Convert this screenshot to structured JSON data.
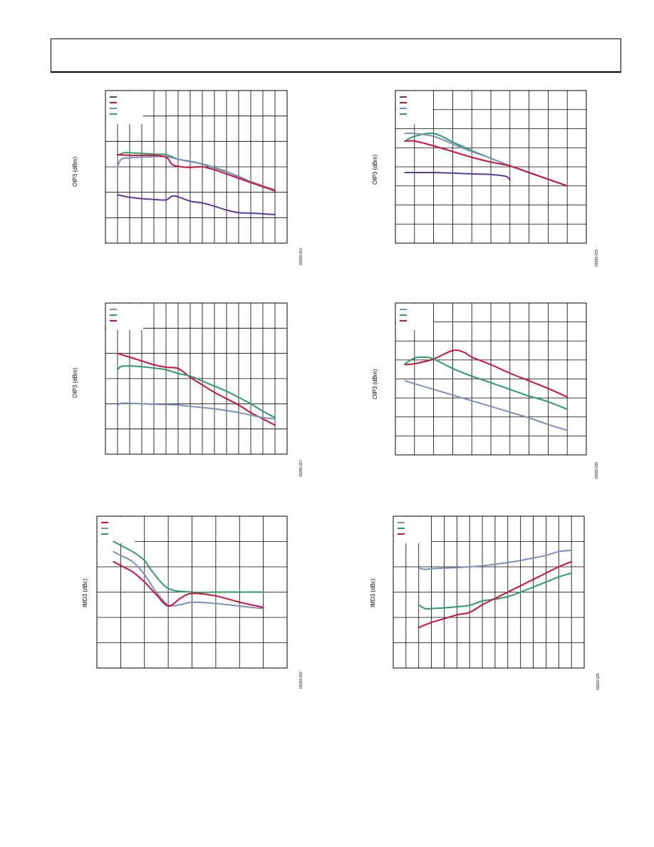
{
  "colors": {
    "purple": "#5b3a9a",
    "red": "#d0103a",
    "blue": "#7a8fc0",
    "green": "#2e9c6a",
    "grid": "#000000"
  },
  "charts": [
    {
      "id": "chart1",
      "ylabel": "OIP3 (dBm)",
      "fignum": "03283-012",
      "legend_colors": [
        "purple",
        "red",
        "blue",
        "green"
      ],
      "chart_data": {
        "type": "line",
        "xgrid": 15,
        "ygrid": 6,
        "xlim": [
          0,
          15
        ],
        "ylim": [
          0,
          6
        ],
        "series": [
          {
            "color": "green",
            "x": [
              1,
              1.5,
              2,
              3,
              4,
              5,
              6,
              7,
              8,
              9,
              10,
              11,
              12,
              13,
              14
            ],
            "y": [
              3.45,
              3.55,
              3.55,
              3.53,
              3.5,
              3.48,
              3.3,
              3.22,
              3.1,
              2.95,
              2.8,
              2.62,
              2.42,
              2.25,
              2.1
            ]
          },
          {
            "color": "blue",
            "x": [
              1,
              1.3,
              2,
              3,
              4,
              5,
              6,
              7,
              8,
              9,
              10,
              11,
              12,
              13,
              14
            ],
            "y": [
              3.0,
              3.3,
              3.35,
              3.38,
              3.4,
              3.4,
              3.3,
              3.2,
              3.12,
              2.97,
              2.82,
              2.6,
              2.42,
              2.25,
              2.08
            ]
          },
          {
            "color": "red",
            "x": [
              1,
              2,
              3,
              4,
              5,
              5.5,
              6,
              7,
              8,
              9,
              10,
              11,
              12,
              13,
              14
            ],
            "y": [
              3.48,
              3.45,
              3.45,
              3.45,
              3.38,
              3.1,
              3.02,
              2.98,
              3.0,
              2.88,
              2.72,
              2.55,
              2.38,
              2.22,
              2.05
            ]
          },
          {
            "color": "purple",
            "x": [
              1,
              2,
              3,
              4,
              5,
              5.5,
              6,
              7,
              8,
              9,
              10,
              11,
              12,
              13,
              14
            ],
            "y": [
              1.9,
              1.8,
              1.75,
              1.72,
              1.7,
              1.85,
              1.82,
              1.65,
              1.58,
              1.45,
              1.3,
              1.2,
              1.18,
              1.15,
              1.12
            ]
          }
        ]
      }
    },
    {
      "id": "chart2",
      "ylabel": "OIP3 (dBm)",
      "fignum": "03283-015",
      "legend_colors": [
        "purple",
        "red",
        "blue",
        "green"
      ],
      "chart_data": {
        "type": "line",
        "xgrid": 10,
        "ygrid": 8,
        "xlim": [
          0,
          10
        ],
        "ylim": [
          0,
          8
        ],
        "series": [
          {
            "color": "green",
            "x": [
              0.5,
              1,
              2,
              3,
              4,
              5,
              6,
              7,
              8,
              9
            ],
            "y": [
              5.35,
              5.6,
              5.75,
              5.3,
              4.85,
              4.45,
              4.05,
              3.7,
              3.35,
              3.0
            ]
          },
          {
            "color": "blue",
            "x": [
              0.5,
              1,
              2,
              3,
              4,
              5,
              6,
              7,
              8,
              9
            ],
            "y": [
              5.75,
              5.75,
              5.6,
              5.2,
              4.8,
              4.45,
              4.05,
              3.7,
              3.35,
              3.0
            ]
          },
          {
            "color": "red",
            "x": [
              0.5,
              1,
              2,
              3,
              4,
              5,
              6,
              7,
              8,
              9
            ],
            "y": [
              5.35,
              5.35,
              5.1,
              4.8,
              4.5,
              4.25,
              4.05,
              3.7,
              3.35,
              3.0
            ]
          },
          {
            "color": "purple",
            "x": [
              0.5,
              1,
              2,
              3,
              4,
              5,
              5.8,
              6
            ],
            "y": [
              3.7,
              3.7,
              3.7,
              3.67,
              3.63,
              3.6,
              3.5,
              3.3
            ]
          }
        ]
      }
    },
    {
      "id": "chart3",
      "ylabel": "OIP3 (dBm)",
      "fignum": "03283-017",
      "legend_colors": [
        "blue",
        "green",
        "red"
      ],
      "chart_data": {
        "type": "line",
        "xgrid": 15,
        "ygrid": 6,
        "xlim": [
          0,
          15
        ],
        "ylim": [
          0,
          6
        ],
        "series": [
          {
            "color": "red",
            "x": [
              1,
              2,
              3,
              4,
              5,
              6,
              7,
              8,
              9,
              10,
              11,
              12,
              13,
              14
            ],
            "y": [
              4.0,
              3.85,
              3.7,
              3.55,
              3.45,
              3.4,
              3.05,
              2.75,
              2.45,
              2.2,
              1.95,
              1.65,
              1.4,
              1.15
            ]
          },
          {
            "color": "green",
            "x": [
              1,
              1.3,
              2,
              3,
              4,
              5,
              6,
              7,
              8,
              9,
              10,
              11,
              12,
              13,
              14
            ],
            "y": [
              3.35,
              3.48,
              3.5,
              3.47,
              3.42,
              3.35,
              3.2,
              3.1,
              2.9,
              2.7,
              2.5,
              2.25,
              2.0,
              1.7,
              1.45
            ]
          },
          {
            "color": "blue",
            "x": [
              1,
              1.3,
              2,
              3,
              4,
              5,
              6,
              7,
              8,
              9,
              10,
              11,
              12,
              13,
              14
            ],
            "y": [
              1.95,
              2.02,
              2.02,
              2.0,
              1.98,
              1.97,
              1.95,
              1.9,
              1.85,
              1.8,
              1.73,
              1.65,
              1.55,
              1.45,
              1.4
            ]
          }
        ]
      }
    },
    {
      "id": "chart4",
      "ylabel": "OIP3 (dBm)",
      "fignum": "03283-020",
      "legend_colors": [
        "blue",
        "green",
        "red"
      ],
      "chart_data": {
        "type": "line",
        "xgrid": 10,
        "ygrid": 8,
        "xlim": [
          0,
          10
        ],
        "ylim": [
          0,
          8
        ],
        "series": [
          {
            "color": "red",
            "x": [
              0.5,
              1,
              2,
              3,
              3.6,
              4,
              5,
              6,
              7,
              8,
              9
            ],
            "y": [
              4.75,
              4.8,
              5.05,
              5.5,
              5.4,
              5.15,
              4.75,
              4.3,
              3.9,
              3.5,
              3.05
            ]
          },
          {
            "color": "green",
            "x": [
              0.5,
              1,
              1.5,
              2,
              3,
              4,
              5,
              6,
              7,
              8,
              9
            ],
            "y": [
              4.8,
              5.1,
              5.15,
              5.05,
              4.55,
              4.15,
              3.8,
              3.45,
              3.1,
              2.8,
              2.4
            ]
          },
          {
            "color": "blue",
            "x": [
              0.5,
              1,
              2,
              3,
              4,
              5,
              6,
              7,
              8,
              9
            ],
            "y": [
              3.9,
              3.75,
              3.45,
              3.15,
              2.85,
              2.55,
              2.25,
              1.95,
              1.6,
              1.3
            ]
          }
        ]
      }
    },
    {
      "id": "chart5",
      "ylabel": "IMD3 (dBc)",
      "fignum": "03283-022",
      "legend_colors": [
        "red",
        "blue",
        "green"
      ],
      "chart_data": {
        "type": "line",
        "xgrid": 8,
        "ygrid": 6,
        "xlim": [
          0,
          8
        ],
        "ylim": [
          0,
          6
        ],
        "series": [
          {
            "color": "green",
            "x": [
              0.7,
              1,
              1.5,
              2,
              2.3,
              3,
              4,
              5,
              6,
              7
            ],
            "y": [
              5.0,
              4.85,
              4.6,
              4.25,
              3.85,
              3.15,
              3.0,
              3.0,
              3.0,
              3.0
            ]
          },
          {
            "color": "blue",
            "x": [
              0.7,
              1,
              1.5,
              2,
              2.5,
              3,
              3.5,
              4,
              5,
              6,
              7
            ],
            "y": [
              4.6,
              4.45,
              4.2,
              3.7,
              3.0,
              2.5,
              2.5,
              2.6,
              2.55,
              2.45,
              2.35
            ]
          },
          {
            "color": "red",
            "x": [
              0.7,
              1,
              1.5,
              2,
              2.5,
              3,
              3.5,
              4,
              5,
              6,
              7
            ],
            "y": [
              4.2,
              4.05,
              3.8,
              3.4,
              2.9,
              2.45,
              2.75,
              2.95,
              2.85,
              2.6,
              2.4
            ]
          }
        ]
      }
    },
    {
      "id": "chart6",
      "ylabel": "IMD3 (dBc)",
      "fignum": "03283-025",
      "legend_colors": [
        "blue",
        "green",
        "red"
      ],
      "chart_data": {
        "type": "line",
        "xgrid": 15,
        "ygrid": 6,
        "xlim": [
          0,
          15
        ],
        "ylim": [
          0,
          6
        ],
        "series": [
          {
            "color": "blue",
            "x": [
              2,
              2.5,
              3,
              4,
              5,
              6,
              7,
              8,
              9,
              10,
              11,
              12,
              13,
              14
            ],
            "y": [
              3.95,
              3.9,
              3.92,
              3.95,
              3.97,
              4.0,
              4.04,
              4.1,
              4.17,
              4.25,
              4.35,
              4.45,
              4.6,
              4.65
            ]
          },
          {
            "color": "green",
            "x": [
              2,
              2.5,
              3,
              4,
              5,
              6,
              7,
              8,
              9,
              10,
              11,
              12,
              13,
              14
            ],
            "y": [
              2.5,
              2.35,
              2.35,
              2.38,
              2.42,
              2.48,
              2.65,
              2.72,
              2.82,
              3.0,
              3.2,
              3.4,
              3.6,
              3.75
            ]
          },
          {
            "color": "red",
            "x": [
              2,
              3,
              4,
              5,
              6,
              7,
              8,
              9,
              10,
              11,
              12,
              13,
              14
            ],
            "y": [
              1.6,
              1.8,
              1.95,
              2.1,
              2.2,
              2.5,
              2.75,
              3.0,
              3.25,
              3.5,
              3.75,
              4.0,
              4.2
            ]
          }
        ]
      }
    }
  ]
}
